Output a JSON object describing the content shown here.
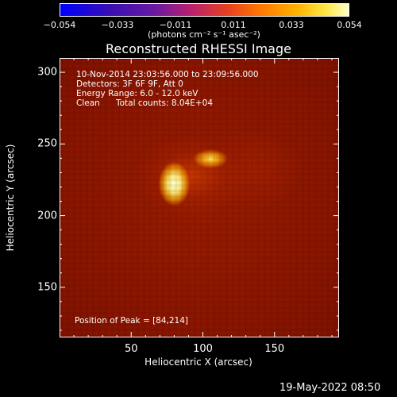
{
  "colorbar": {
    "ticks": [
      "−0.054",
      "−0.033",
      "−0.011",
      "0.011",
      "0.033",
      "0.054"
    ],
    "range": [
      -0.054,
      0.054
    ],
    "unit": "(photons cm⁻² s⁻¹ asec⁻²)",
    "colors": [
      "#0000ff",
      "#6a1aa0",
      "#e6401f",
      "#ffb300",
      "#ffffc8"
    ]
  },
  "chart_data": {
    "type": "heatmap",
    "title": "Reconstructed RHESSI Image",
    "xlabel": "Heliocentric X (arcsec)",
    "ylabel": "Heliocentric Y (arcsec)",
    "xlim": [
      0,
      195
    ],
    "ylim": [
      115,
      310
    ],
    "xticks": [
      "50",
      "100",
      "150"
    ],
    "xtick_values": [
      50,
      100,
      150
    ],
    "yticks": [
      "150",
      "200",
      "250",
      "300"
    ],
    "ytick_values": [
      150,
      200,
      250,
      300
    ],
    "annotations": [
      "10-Nov-2014 23:03:56.000 to 23:09:56.000",
      "Detectors: 3F 6F 9F, Att 0",
      "Energy Range: 6.0 - 12.0 keV",
      "Clean",
      "Total counts: 8.04E+04"
    ],
    "peak_label": "Position of Peak = [84,214]",
    "peak": [
      84,
      214
    ],
    "sources": [
      {
        "x": 84,
        "y": 214,
        "intensity": 0.054
      },
      {
        "x": 110,
        "y": 238,
        "intensity": 0.04
      }
    ]
  },
  "footer": {
    "date": "19-May-2022 08:50"
  }
}
